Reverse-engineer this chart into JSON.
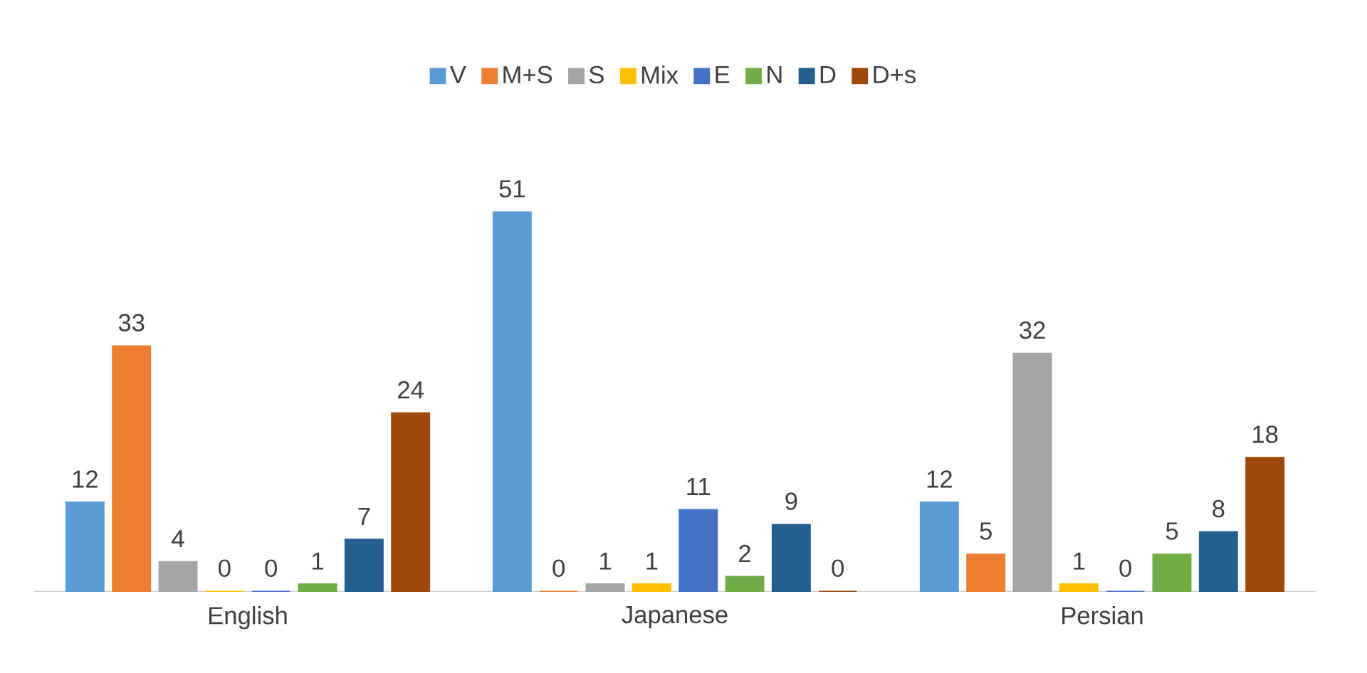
{
  "chart_data": {
    "type": "bar",
    "categories": [
      "English",
      "Japanese",
      "Persian"
    ],
    "series": [
      {
        "name": "V",
        "color": "#5b9bd5",
        "values": [
          12,
          51,
          12
        ]
      },
      {
        "name": "M+S",
        "color": "#ed7d31",
        "values": [
          33,
          0,
          5
        ]
      },
      {
        "name": "S",
        "color": "#a5a5a5",
        "values": [
          4,
          1,
          32
        ]
      },
      {
        "name": "Mix",
        "color": "#ffc000",
        "values": [
          0,
          1,
          1
        ]
      },
      {
        "name": "E",
        "color": "#4472c4",
        "values": [
          0,
          11,
          0
        ]
      },
      {
        "name": "N",
        "color": "#70ad47",
        "values": [
          1,
          2,
          5
        ]
      },
      {
        "name": "D",
        "color": "#255e91",
        "values": [
          7,
          9,
          8
        ]
      },
      {
        "name": "D+s",
        "color": "#9e480e",
        "values": [
          24,
          0,
          18
        ]
      }
    ],
    "data_labels": true,
    "legend": "top"
  }
}
